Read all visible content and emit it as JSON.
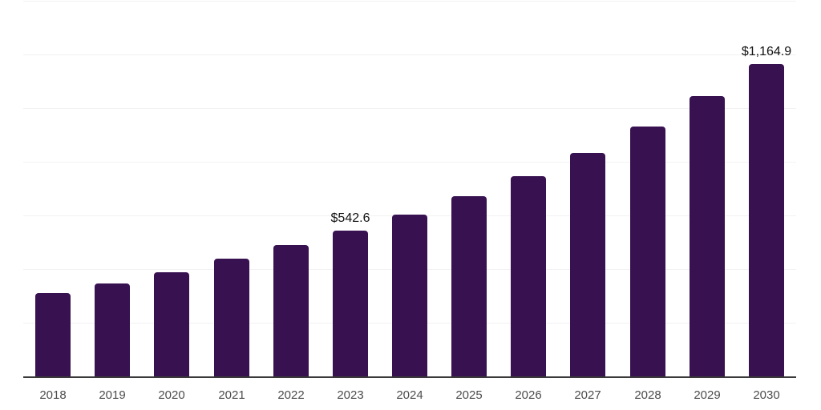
{
  "chart_data": {
    "type": "bar",
    "title": "",
    "xlabel": "",
    "ylabel": "",
    "categories": [
      "2018",
      "2019",
      "2020",
      "2021",
      "2022",
      "2023",
      "2024",
      "2025",
      "2026",
      "2027",
      "2028",
      "2029",
      "2030"
    ],
    "values": [
      310,
      346,
      388,
      438,
      490,
      542.6,
      603,
      672,
      746,
      833,
      931,
      1044,
      1164.9
    ],
    "value_labels": [
      "",
      "",
      "",
      "",
      "",
      "$542.6",
      "",
      "",
      "",
      "",
      "",
      "",
      "$1,164.9"
    ],
    "ylim": [
      0,
      1400
    ],
    "gridline_step": 200,
    "grid": "horizontal-only",
    "legend": "none",
    "y_axis_tick_labels": "none"
  },
  "colors": {
    "background": "#ffffff",
    "bar": "#371150",
    "gridline": "#f2f2f2",
    "axis_line": "#3a3a3a",
    "x_label": "#4d4d4d",
    "value_label": "#121212"
  }
}
